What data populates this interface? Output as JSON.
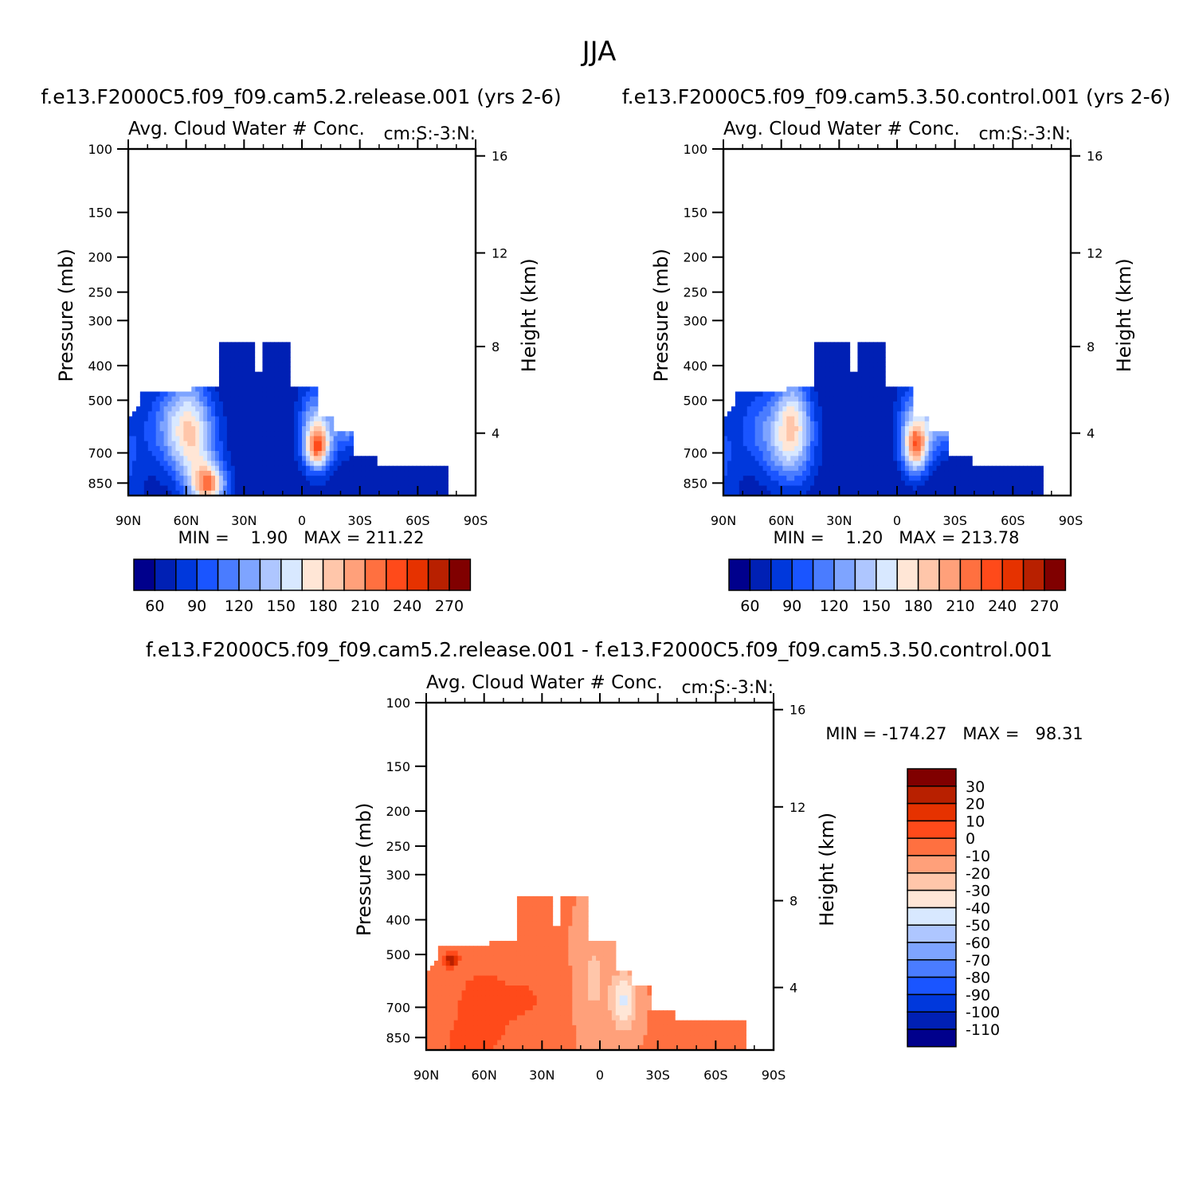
{
  "figure": {
    "title": "JJA",
    "palette_main": [
      "#00008c",
      "#0020b4",
      "#0038dc",
      "#1a55ff",
      "#4a7cff",
      "#7ea4ff",
      "#aec6ff",
      "#d8e8ff",
      "#ffe6d6",
      "#ffc6aa",
      "#ffa07a",
      "#ff7040",
      "#ff4a1a",
      "#e63200",
      "#b82000",
      "#800000"
    ],
    "palette_diff": [
      "#00008c",
      "#0020b4",
      "#0038dc",
      "#1a55ff",
      "#4a7cff",
      "#7ea4ff",
      "#aec6ff",
      "#d8e8ff",
      "#ffe6d6",
      "#ffc6aa",
      "#ffa07a",
      "#ff7040",
      "#ff4a1a",
      "#e63200",
      "#b82000",
      "#800000"
    ]
  },
  "chart_data": [
    {
      "type": "heatmap",
      "title": "f.e13.F2000C5.f09_f09.cam5.2.release.001 (yrs 2-6)",
      "subtitle_left": "Avg. Cloud Water # Conc.",
      "subtitle_right": "cm:S:-3:N:",
      "ylabel": "Pressure (mb)",
      "ylabel_right": "Height (km)",
      "xticks": [
        "90N",
        "60N",
        "30N",
        "0",
        "30S",
        "60S",
        "90S"
      ],
      "yticks": [
        "100",
        "150",
        "200",
        "250",
        "300",
        "400",
        "500",
        "700",
        "850"
      ],
      "yticks_right": [
        "16",
        "12",
        "8",
        "4"
      ],
      "stats": "MIN =    1.90   MAX = 211.22",
      "colorbar_labels": [
        "60",
        "90",
        "120",
        "150",
        "180",
        "210",
        "240",
        "270"
      ]
    },
    {
      "type": "heatmap",
      "title": "f.e13.F2000C5.f09_f09.cam5.3.50.control.001 (yrs 2-6)",
      "subtitle_left": "Avg. Cloud Water # Conc.",
      "subtitle_right": "cm:S:-3:N:",
      "ylabel": "Pressure (mb)",
      "ylabel_right": "Height (km)",
      "xticks": [
        "90N",
        "60N",
        "30N",
        "0",
        "30S",
        "60S",
        "90S"
      ],
      "yticks": [
        "100",
        "150",
        "200",
        "250",
        "300",
        "400",
        "500",
        "700",
        "850"
      ],
      "yticks_right": [
        "16",
        "12",
        "8",
        "4"
      ],
      "stats": "MIN =    1.20   MAX = 213.78",
      "colorbar_labels": [
        "60",
        "90",
        "120",
        "150",
        "180",
        "210",
        "240",
        "270"
      ]
    },
    {
      "type": "heatmap",
      "title": "f.e13.F2000C5.f09_f09.cam5.2.release.001 - f.e13.F2000C5.f09_f09.cam5.3.50.control.001",
      "subtitle_left": "Avg. Cloud Water # Conc.",
      "subtitle_right": "cm:S:-3:N:",
      "ylabel": "Pressure (mb)",
      "ylabel_right": "Height (km)",
      "xticks": [
        "90N",
        "60N",
        "30N",
        "0",
        "30S",
        "60S",
        "90S"
      ],
      "yticks": [
        "100",
        "150",
        "200",
        "250",
        "300",
        "400",
        "500",
        "700",
        "850"
      ],
      "yticks_right": [
        "16",
        "12",
        "8",
        "4"
      ],
      "stats": "MIN = -174.27   MAX =   98.31",
      "colorbar_labels": [
        "30",
        "20",
        "10",
        "0",
        "-10",
        "-20",
        "-30",
        "-40",
        "-50",
        "-60",
        "-70",
        "-80",
        "-90",
        "-100",
        "-110"
      ]
    }
  ]
}
